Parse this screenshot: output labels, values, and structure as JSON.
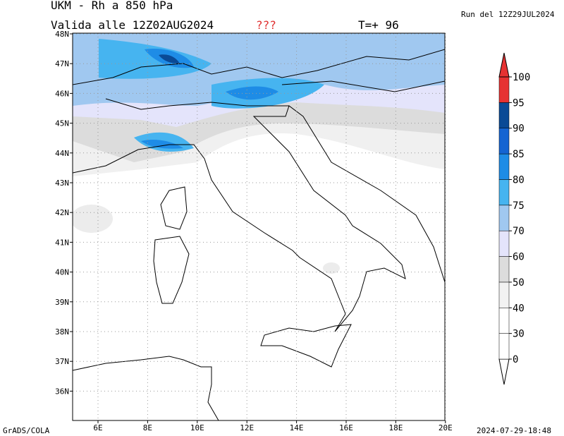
{
  "header": {
    "title": "UKM - Rh a 850 hPa",
    "valid": "Valida alle 12Z02AUG2024",
    "flag": "???",
    "lead": "T=+ 96",
    "run": "Run del 12Z29JUL2024"
  },
  "map": {
    "lon_ticks": [
      "6E",
      "8E",
      "10E",
      "12E",
      "14E",
      "16E",
      "18E",
      "20E"
    ],
    "lat_ticks": [
      "48N",
      "47N",
      "46N",
      "45N",
      "44N",
      "43N",
      "42N",
      "41N",
      "40N",
      "39N",
      "38N",
      "37N",
      "36N"
    ]
  },
  "colorbar": {
    "levels": [
      "0",
      "30",
      "40",
      "50",
      "60",
      "70",
      "75",
      "80",
      "85",
      "90",
      "95",
      "100"
    ],
    "colors": [
      "#ffffff",
      "#ffffff",
      "#ffffff",
      "#f2f2f2",
      "#dcdcdc",
      "#e4e4fb",
      "#a0c8f0",
      "#46b4f0",
      "#1e8ce6",
      "#1464d2",
      "#0a4a96",
      "#e63232"
    ]
  },
  "footer": {
    "left": "GrADS/COLA",
    "right": "2024-07-29-18:48"
  }
}
